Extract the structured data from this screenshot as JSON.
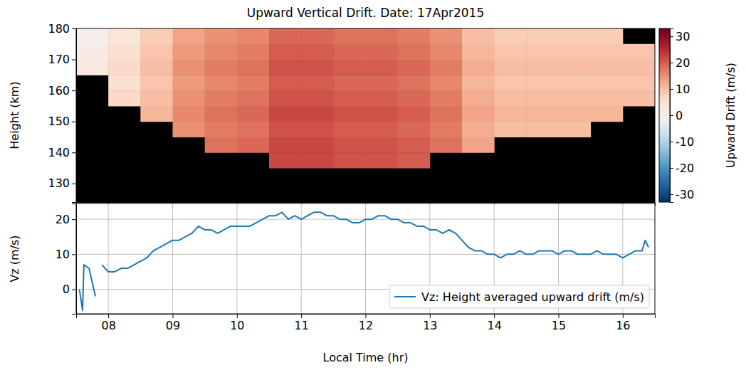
{
  "chart_data": [
    {
      "type": "heatmap",
      "title": "Upward Vertical Drift. Date: 17Apr2015",
      "y_label": "Height (km)",
      "xlim": [
        7.5,
        16.5
      ],
      "ylim": [
        124,
        180
      ],
      "xticks": [
        8,
        9,
        10,
        11,
        12,
        13,
        14,
        15,
        16
      ],
      "yticks": [
        130,
        140,
        150,
        160,
        170,
        180
      ],
      "tick_labels": "y",
      "x_edges": [
        7.5,
        8.0,
        8.5,
        9.0,
        9.5,
        10.0,
        10.5,
        11.0,
        11.5,
        12.0,
        12.5,
        13.0,
        13.5,
        14.0,
        14.5,
        15.0,
        15.5,
        16.0,
        16.5
      ],
      "y_edges": [
        125,
        130,
        135,
        140,
        145,
        150,
        155,
        160,
        165,
        170,
        175,
        180
      ],
      "z": [
        [
          null,
          null,
          null,
          null,
          null,
          null,
          null,
          null,
          null,
          null,
          null,
          null,
          null,
          null,
          null,
          null,
          null,
          null
        ],
        [
          null,
          null,
          null,
          null,
          null,
          null,
          null,
          null,
          null,
          null,
          null,
          null,
          null,
          null,
          null,
          null,
          null,
          null
        ],
        [
          null,
          null,
          null,
          null,
          null,
          null,
          22,
          22,
          21,
          21,
          20,
          null,
          null,
          null,
          null,
          null,
          null,
          null
        ],
        [
          null,
          null,
          null,
          null,
          18,
          19,
          22,
          22,
          21,
          21,
          20,
          18,
          13,
          null,
          null,
          null,
          null,
          null
        ],
        [
          null,
          null,
          null,
          15,
          17,
          18,
          21,
          21,
          20,
          20,
          19,
          17,
          12,
          10,
          10,
          10,
          null,
          null
        ],
        [
          null,
          null,
          11,
          16,
          18,
          19,
          22,
          22,
          21,
          21,
          20,
          18,
          13,
          11,
          11,
          11,
          11,
          null
        ],
        [
          null,
          6,
          10,
          15,
          17,
          18,
          21,
          21,
          20,
          20,
          19,
          17,
          12,
          10,
          10,
          10,
          10,
          10
        ],
        [
          null,
          5,
          9,
          14,
          16,
          17,
          20,
          20,
          19,
          19,
          18,
          16,
          11,
          9,
          9,
          9,
          9,
          9
        ],
        [
          3,
          6,
          10,
          15,
          17,
          18,
          21,
          21,
          20,
          20,
          19,
          17,
          12,
          10,
          10,
          10,
          10,
          10
        ],
        [
          2,
          5,
          9,
          14,
          16,
          17,
          20,
          20,
          19,
          19,
          18,
          16,
          11,
          9,
          9,
          9,
          9,
          9
        ],
        [
          1,
          4,
          8,
          13,
          15,
          16,
          19,
          19,
          18,
          18,
          17,
          15,
          10,
          8,
          8,
          8,
          8,
          null
        ]
      ],
      "zlim": [
        -33,
        33
      ],
      "zticks": [
        -30,
        -20,
        -10,
        0,
        10,
        20,
        30
      ],
      "colorbar_label": "Upward Drift (m/s)"
    },
    {
      "type": "line",
      "x_label": "Local Time (hr)",
      "y_label": "Vz (m/s)",
      "xlim": [
        7.5,
        16.5
      ],
      "ylim": [
        -7,
        24.5
      ],
      "xticks": [
        {
          "value": 8,
          "label": "08"
        },
        {
          "value": 9,
          "label": "09"
        },
        10,
        11,
        12,
        13,
        14,
        15,
        16
      ],
      "yticks": [
        0,
        10,
        20
      ],
      "grid": true,
      "legend": "lower right",
      "x": [
        7.55,
        7.6,
        7.62,
        7.7,
        7.75,
        7.8,
        7.85,
        7.9,
        8.0,
        8.1,
        8.2,
        8.3,
        8.4,
        8.5,
        8.6,
        8.7,
        8.8,
        8.9,
        9.0,
        9.1,
        9.2,
        9.3,
        9.4,
        9.5,
        9.6,
        9.7,
        9.8,
        9.9,
        10.0,
        10.1,
        10.2,
        10.3,
        10.4,
        10.5,
        10.6,
        10.7,
        10.8,
        10.9,
        11.0,
        11.1,
        11.2,
        11.3,
        11.4,
        11.5,
        11.6,
        11.7,
        11.8,
        11.9,
        12.0,
        12.1,
        12.2,
        12.3,
        12.4,
        12.5,
        12.6,
        12.7,
        12.8,
        12.9,
        13.0,
        13.1,
        13.2,
        13.3,
        13.4,
        13.5,
        13.6,
        13.7,
        13.8,
        13.9,
        14.0,
        14.1,
        14.2,
        14.3,
        14.4,
        14.5,
        14.6,
        14.7,
        14.8,
        14.9,
        15.0,
        15.1,
        15.2,
        15.3,
        15.4,
        15.5,
        15.6,
        15.7,
        15.8,
        15.9,
        16.0,
        16.1,
        16.2,
        16.3,
        16.35,
        16.4
      ],
      "series": [
        {
          "name": "Vz: Height averaged upward drift (m/s)",
          "color": "#1f77b4",
          "values": [
            0,
            -6,
            7,
            6,
            2,
            -2,
            null,
            7,
            5,
            5,
            6,
            6,
            7,
            8,
            9,
            11,
            12,
            13,
            14,
            14,
            15,
            16,
            18,
            17,
            17,
            16,
            17,
            18,
            18,
            18,
            18,
            19,
            20,
            21,
            21,
            22,
            20,
            21,
            20,
            21,
            22,
            22,
            21,
            21,
            20,
            20,
            19,
            19,
            20,
            20,
            21,
            21,
            20,
            20,
            19,
            19,
            18,
            18,
            17,
            17,
            16,
            17,
            16,
            14,
            12,
            11,
            11,
            10,
            10,
            9,
            10,
            10,
            11,
            10,
            10,
            11,
            11,
            11,
            10,
            11,
            11,
            10,
            10,
            10,
            11,
            10,
            10,
            10,
            9,
            10,
            11,
            11,
            14,
            12
          ]
        }
      ]
    }
  ]
}
